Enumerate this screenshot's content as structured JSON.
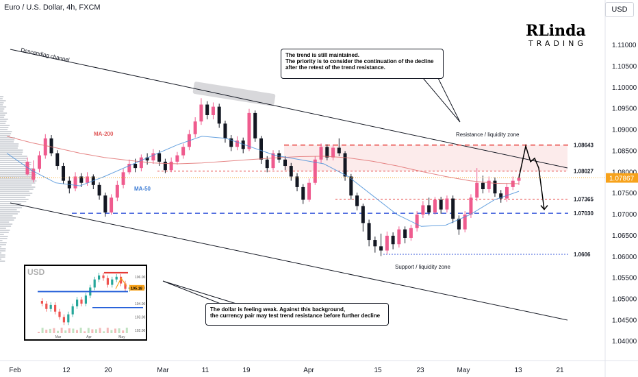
{
  "header": {
    "title": "Euro / U.S. Dollar, 4h, FXCM",
    "currency_button": "USD"
  },
  "logo": {
    "main": "RLinda",
    "sub": "TRADING"
  },
  "colors": {
    "up": "#ef5b8e",
    "down": "#131722",
    "resistance_line": "#e53935",
    "support_line": "#3b5bdb",
    "ma200": "#e07070",
    "ma50": "#4a90d9",
    "current_price_bg": "#f7a21b"
  },
  "chart_data": {
    "type": "candlestick",
    "ylim": [
      1.0355,
      1.1165
    ],
    "y_ticks": [
      "1.11000",
      "1.10500",
      "1.10000",
      "1.09500",
      "1.09000",
      "1.08500",
      "1.08000",
      "1.07500",
      "1.07000",
      "1.06500",
      "1.06000",
      "1.05500",
      "1.05000",
      "1.04500",
      "1.04000"
    ],
    "x_ticks": [
      "Feb",
      "12",
      "20",
      "Mar",
      "11",
      "19",
      "Apr",
      "15",
      "23",
      "May",
      "13",
      "21"
    ],
    "current_price": "1.07867",
    "levels": [
      {
        "value": 1.08643,
        "label": "1.08643",
        "style": "resistance"
      },
      {
        "value": 1.08027,
        "label": "1.08027",
        "style": "minor"
      },
      {
        "value": 1.07365,
        "label": "1.07365",
        "style": "minor"
      },
      {
        "value": 1.0703,
        "label": "1.07030",
        "style": "support"
      },
      {
        "value": 1.0606,
        "label": "1.0606",
        "style": "minor-blue"
      }
    ],
    "annotations": {
      "channel": "Descending channel",
      "ma200": "MA-200",
      "ma50": "MA-50",
      "resistance_zone": "Resistance / liquidity zone",
      "support_zone": "Support / liquidity zone"
    },
    "path_points": [
      [
        1.0795,
        1.0825,
        1.0835,
        1.0792
      ],
      [
        1.0782,
        1.0808,
        1.0828,
        1.0776
      ],
      [
        1.0808,
        1.084,
        1.085,
        1.08
      ],
      [
        1.084,
        1.088,
        1.089,
        1.0832
      ],
      [
        1.088,
        1.0845,
        1.0888,
        1.0838
      ],
      [
        1.0845,
        1.0815,
        1.0852,
        1.0806
      ],
      [
        1.0815,
        1.078,
        1.0822,
        1.0772
      ],
      [
        1.078,
        1.0762,
        1.079,
        1.075
      ],
      [
        1.0762,
        1.079,
        1.08,
        1.0755
      ],
      [
        1.079,
        1.0775,
        1.0798,
        1.0765
      ],
      [
        1.0775,
        1.079,
        1.08,
        1.0768
      ],
      [
        1.079,
        1.077,
        1.0795,
        1.076
      ],
      [
        1.077,
        1.0745,
        1.0776,
        1.0735
      ],
      [
        1.0745,
        1.0705,
        1.0752,
        1.0695
      ],
      [
        1.0705,
        1.074,
        1.0748,
        1.07
      ],
      [
        1.074,
        1.077,
        1.078,
        1.0732
      ],
      [
        1.077,
        1.08,
        1.0808,
        1.0762
      ],
      [
        1.08,
        1.082,
        1.083,
        1.0795
      ],
      [
        1.082,
        1.081,
        1.0832,
        1.08
      ],
      [
        1.081,
        1.0835,
        1.0842,
        1.0802
      ],
      [
        1.0835,
        1.0828,
        1.0845,
        1.0818
      ],
      [
        1.0828,
        1.0845,
        1.0855,
        1.082
      ],
      [
        1.0845,
        1.0825,
        1.0852,
        1.0815
      ],
      [
        1.0825,
        1.0805,
        1.0832,
        1.0798
      ],
      [
        1.0805,
        1.0825,
        1.0835,
        1.08
      ],
      [
        1.0825,
        1.084,
        1.0848,
        1.0818
      ],
      [
        1.084,
        1.086,
        1.0868,
        1.0832
      ],
      [
        1.086,
        1.089,
        1.09,
        1.0852
      ],
      [
        1.089,
        1.092,
        1.093,
        1.0882
      ],
      [
        1.092,
        1.096,
        1.0975,
        1.0912
      ],
      [
        1.096,
        1.0935,
        1.0968,
        1.0925
      ],
      [
        1.0935,
        1.0955,
        1.0965,
        1.0925
      ],
      [
        1.0955,
        1.0915,
        1.0962,
        1.0905
      ],
      [
        1.0915,
        1.088,
        1.0922,
        1.087
      ],
      [
        1.088,
        1.086,
        1.0888,
        1.085
      ],
      [
        1.086,
        1.0875,
        1.0885,
        1.0852
      ],
      [
        1.0875,
        1.0855,
        1.0882,
        1.0845
      ],
      [
        1.0855,
        1.094,
        1.095,
        1.085
      ],
      [
        1.094,
        1.088,
        1.0946,
        1.0872
      ],
      [
        1.088,
        1.083,
        1.0886,
        1.082
      ],
      [
        1.083,
        1.081,
        1.0838,
        1.08
      ],
      [
        1.081,
        1.0845,
        1.0852,
        1.0805
      ],
      [
        1.0845,
        1.083,
        1.0852,
        1.0822
      ],
      [
        1.083,
        1.0815,
        1.0838,
        1.0805
      ],
      [
        1.0815,
        1.079,
        1.0822,
        1.078
      ],
      [
        1.079,
        1.0765,
        1.0798,
        1.0755
      ],
      [
        1.0765,
        1.0735,
        1.0772,
        1.0725
      ],
      [
        1.0735,
        1.0775,
        1.0785,
        1.073
      ],
      [
        1.0775,
        1.083,
        1.0838,
        1.077
      ],
      [
        1.083,
        1.086,
        1.0868,
        1.0822
      ],
      [
        1.086,
        1.0835,
        1.0866,
        1.0828
      ],
      [
        1.0835,
        1.0858,
        1.0866,
        1.0828
      ],
      [
        1.0858,
        1.0845,
        1.088,
        1.0838
      ],
      [
        1.0845,
        1.079,
        1.085,
        1.078
      ],
      [
        1.079,
        1.0745,
        1.0796,
        1.0735
      ],
      [
        1.0745,
        1.072,
        1.0752,
        1.071
      ],
      [
        1.072,
        1.068,
        1.0726,
        1.066
      ],
      [
        1.068,
        1.064,
        1.0688,
        1.0625
      ],
      [
        1.064,
        1.0625,
        1.0648,
        1.061
      ],
      [
        1.0625,
        1.0615,
        1.0655,
        1.0602
      ],
      [
        1.0615,
        1.065,
        1.066,
        1.0606
      ],
      [
        1.065,
        1.063,
        1.0658,
        1.0618
      ],
      [
        1.063,
        1.0665,
        1.0672,
        1.0622
      ],
      [
        1.0665,
        1.0645,
        1.0672,
        1.0632
      ],
      [
        1.0645,
        1.0668,
        1.0676,
        1.0638
      ],
      [
        1.0668,
        1.07,
        1.0708,
        1.066
      ],
      [
        1.07,
        1.0722,
        1.0732,
        1.0692
      ],
      [
        1.0722,
        1.0705,
        1.074,
        1.0698
      ],
      [
        1.0705,
        1.0735,
        1.0742,
        1.07
      ],
      [
        1.0735,
        1.0712,
        1.0742,
        1.0702
      ],
      [
        1.0712,
        1.0738,
        1.0745,
        1.0705
      ],
      [
        1.0738,
        1.069,
        1.0745,
        1.068
      ],
      [
        1.069,
        1.0665,
        1.0698,
        1.0652
      ],
      [
        1.0665,
        1.07,
        1.0708,
        1.0658
      ],
      [
        1.07,
        1.074,
        1.0748,
        1.0692
      ],
      [
        1.074,
        1.0775,
        1.081,
        1.0732
      ],
      [
        1.0775,
        1.076,
        1.0792,
        1.075
      ],
      [
        1.076,
        1.078,
        1.079,
        1.0752
      ],
      [
        1.078,
        1.075,
        1.0788,
        1.0742
      ],
      [
        1.075,
        1.0738,
        1.0758,
        1.0728
      ],
      [
        1.0738,
        1.0765,
        1.0774,
        1.073
      ],
      [
        1.0765,
        1.078,
        1.079,
        1.0758
      ],
      [
        1.078,
        1.0787,
        1.0795,
        1.077
      ]
    ],
    "ma200": [
      1.0885,
      1.087,
      1.0858,
      1.0845,
      1.0835,
      1.0828,
      1.0822,
      1.082,
      1.0822,
      1.0826,
      1.083,
      1.0834,
      1.0837,
      1.0838,
      1.0834,
      1.0826,
      1.0815,
      1.0802,
      1.079,
      1.078,
      1.0774,
      1.0773
    ],
    "ma50": [
      1.0845,
      1.0805,
      1.0775,
      1.0768,
      1.079,
      1.0815,
      1.084,
      1.0865,
      1.0885,
      1.088,
      1.086,
      1.084,
      1.083,
      1.082,
      1.079,
      1.0745,
      1.07,
      1.0672,
      1.0675,
      1.07,
      1.0735,
      1.0755
    ],
    "projection": [
      1.0787,
      1.0862,
      1.0825,
      1.0833,
      1.081,
      1.0712
    ]
  },
  "callouts": {
    "top_line1": "The trend is still maintained.",
    "top_line2": "The priority is to consider the continuation of the decline",
    "top_line3": "after the retest of the trend resistance.",
    "bottom_line1": "The dollar is feeling weak. Against this background,",
    "bottom_line2": "the currency pair may test trend resistance before further decline"
  },
  "inset": {
    "title": "USD",
    "y_ticks": [
      "106.00",
      "105.18",
      "104.00",
      "103.00",
      "102.00"
    ],
    "x_ticks": [
      "Mar",
      "Apr",
      "May"
    ],
    "current_value": "105.18"
  }
}
